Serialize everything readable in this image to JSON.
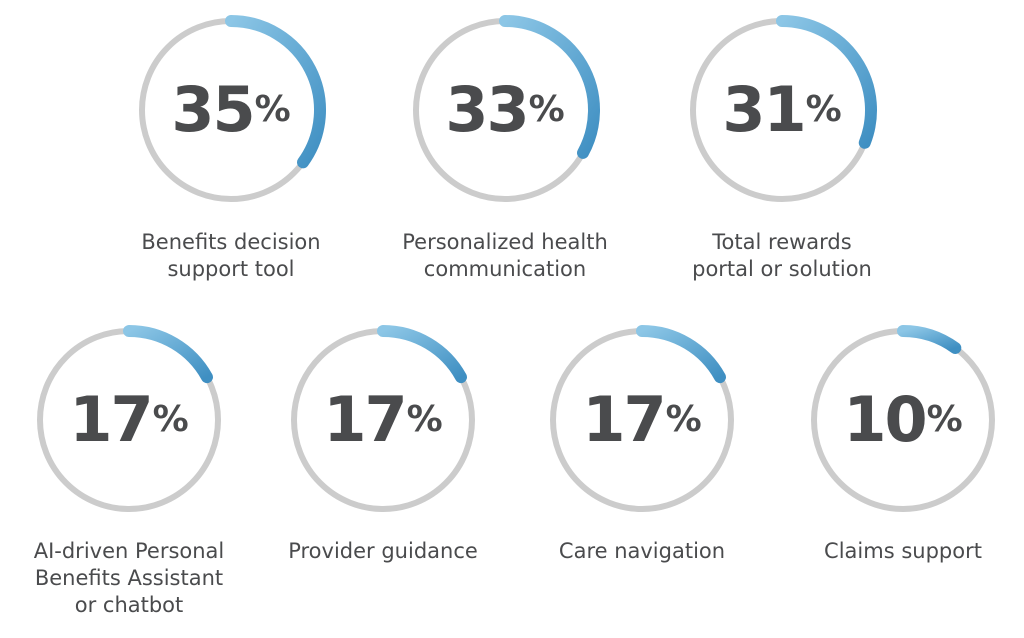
{
  "colors": {
    "track": "#cccccc",
    "arc_start": "#8cc6e6",
    "arc_end": "#3f8fc2",
    "text": "#4a4b4d"
  },
  "chart_data": {
    "type": "radial-progress",
    "percent_symbol": "%",
    "items": [
      {
        "label_lines": [
          "Benefits decision",
          "support tool"
        ],
        "value": 35
      },
      {
        "label_lines": [
          "Personalized health",
          "communication"
        ],
        "value": 33
      },
      {
        "label_lines": [
          "Total rewards",
          "portal or solution"
        ],
        "value": 31
      },
      {
        "label_lines": [
          "AI-driven Personal",
          "Benefits Assistant",
          "or chatbot"
        ],
        "value": 17
      },
      {
        "label_lines": [
          "Provider guidance"
        ],
        "value": 17
      },
      {
        "label_lines": [
          "Care navigation"
        ],
        "value": 17
      },
      {
        "label_lines": [
          "Claims support"
        ],
        "value": 10
      }
    ]
  }
}
